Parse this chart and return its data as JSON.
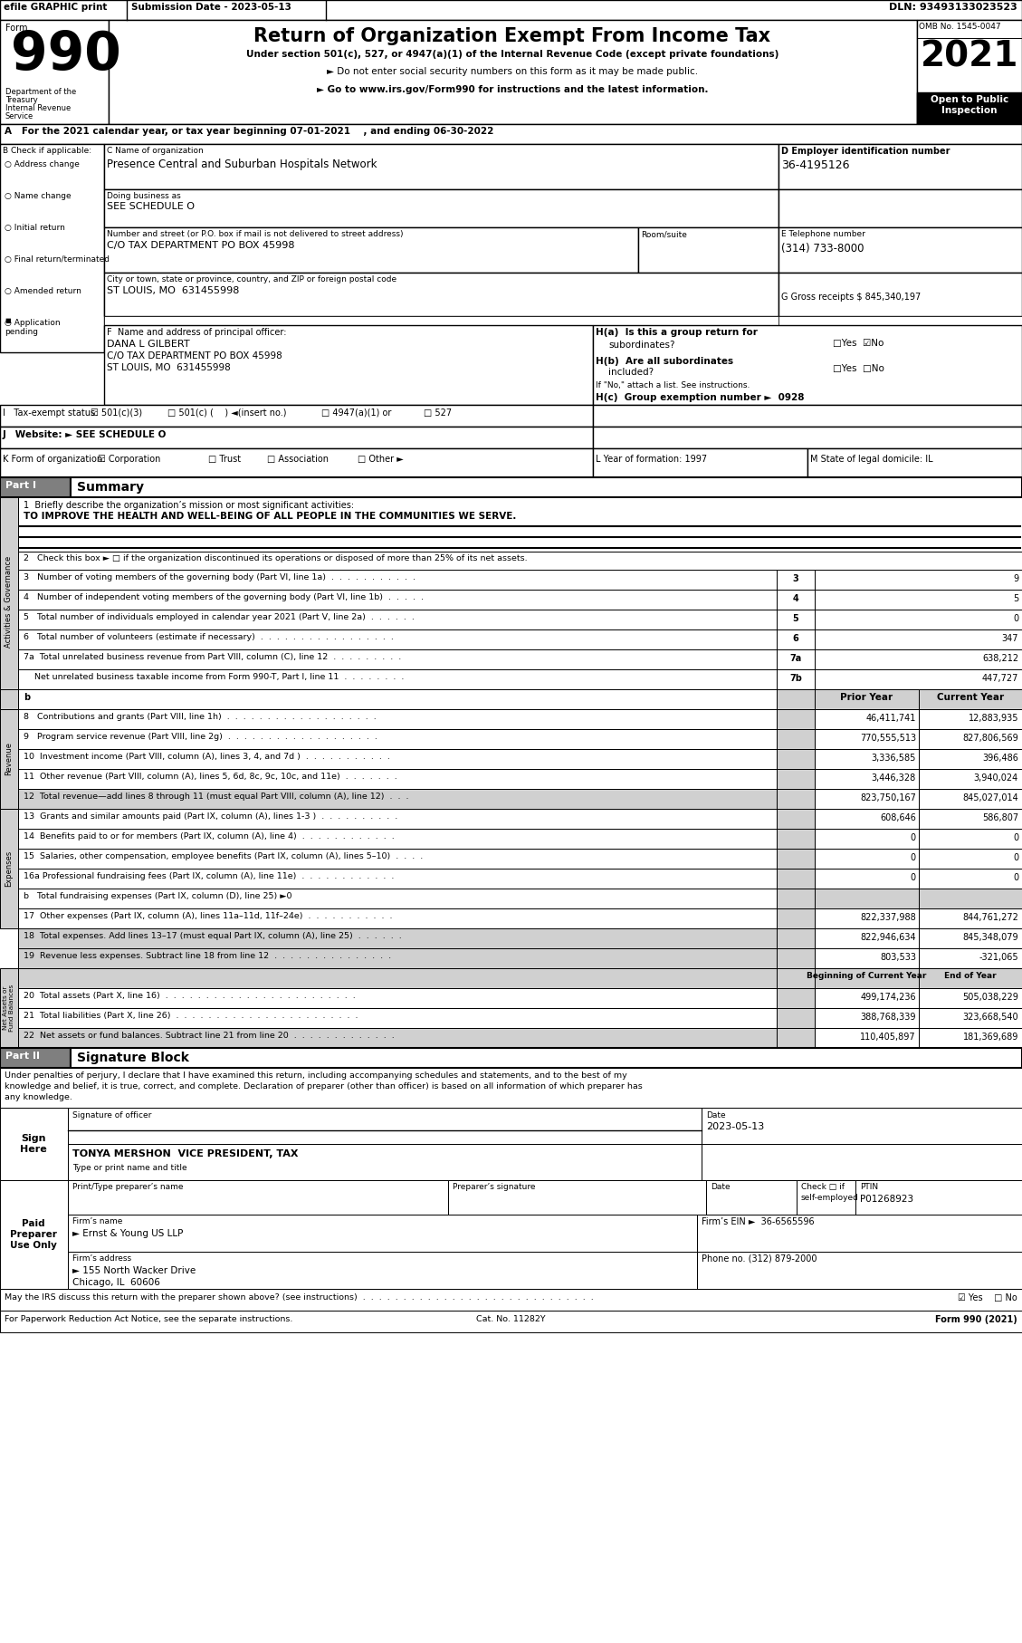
{
  "title": "Return of Organization Exempt From Income Tax",
  "form_number": "990",
  "year": "2021",
  "omb": "OMB No. 1545-0047",
  "efile_header": "efile GRAPHIC print",
  "submission_date": "Submission Date - 2023-05-13",
  "dln": "DLN: 93493133023523",
  "subtitle1": "Under section 501(c), 527, or 4947(a)(1) of the Internal Revenue Code (except private foundations)",
  "bullet1": "► Do not enter social security numbers on this form as it may be made public.",
  "bullet2": "► Go to www.irs.gov/Form990 for instructions and the latest information.",
  "tax_year_line": "A   For the 2021 calendar year, or tax year beginning 07-01-2021    , and ending 06-30-2022",
  "b_label": "B Check if applicable:",
  "check_items": [
    "Address change",
    "Name change",
    "Initial return",
    "Final return/terminated",
    "Amended return",
    "Application\npending"
  ],
  "c_label": "C Name of organization",
  "org_name": "Presence Central and Suburban Hospitals Network",
  "dba_label": "Doing business as",
  "dba_value": "SEE SCHEDULE O",
  "street_label": "Number and street (or P.O. box if mail is not delivered to street address)",
  "street_value": "C/O TAX DEPARTMENT PO BOX 45998",
  "room_label": "Room/suite",
  "city_label": "City or town, state or province, country, and ZIP or foreign postal code",
  "city_value": "ST LOUIS, MO  631455998",
  "d_label": "D Employer identification number",
  "ein": "36-4195126",
  "e_label": "E Telephone number",
  "phone": "(314) 733-8000",
  "g_label": "G Gross receipts $ 845,340,197",
  "f_label": "F  Name and address of principal officer:",
  "officer_name": "DANA L GILBERT",
  "officer_addr1": "C/O TAX DEPARTMENT PO BOX 45998",
  "officer_addr2": "ST LOUIS, MO  631455998",
  "ha_label": "H(a)  Is this a group return for",
  "hb_label": "H(b)  Are all subordinates",
  "hb_label2": "included?",
  "hb_note": "If \"No,\" attach a list. See instructions.",
  "hc_label": "H(c)  Group exemption number ►  0928",
  "i_label": "I   Tax-exempt status:",
  "j_label": "J   Website: ► SEE SCHEDULE O",
  "k_label": "K Form of organization:",
  "l_label": "L Year of formation: 1997",
  "m_label": "M State of legal domicile: IL",
  "line1_label": "1  Briefly describe the organization’s mission or most significant activities:",
  "line1_value": "TO IMPROVE THE HEALTH AND WELL-BEING OF ALL PEOPLE IN THE COMMUNITIES WE SERVE.",
  "line2_label": "2   Check this box ► □ if the organization discontinued its operations or disposed of more than 25% of its net assets.",
  "line3_label": "3   Number of voting members of the governing body (Part VI, line 1a)  .  .  .  .  .  .  .  .  .  .  .",
  "line3_val": "9",
  "line4_label": "4   Number of independent voting members of the governing body (Part VI, line 1b)  .  .  .  .  .",
  "line4_val": "5",
  "line5_label": "5   Total number of individuals employed in calendar year 2021 (Part V, line 2a)  .  .  .  .  .  .",
  "line5_val": "0",
  "line6_label": "6   Total number of volunteers (estimate if necessary)  .  .  .  .  .  .  .  .  .  .  .  .  .  .  .  .  .",
  "line6_val": "347",
  "line7a_label": "7a  Total unrelated business revenue from Part VIII, column (C), line 12  .  .  .  .  .  .  .  .  .",
  "line7a_val": "638,212",
  "line7b_label": "    Net unrelated business taxable income from Form 990-T, Part I, line 11  .  .  .  .  .  .  .  .",
  "line7b_val": "447,727",
  "rev_header_prior": "Prior Year",
  "rev_header_current": "Current Year",
  "line8_label": "8   Contributions and grants (Part VIII, line 1h)  .  .  .  .  .  .  .  .  .  .  .  .  .  .  .  .  .  .  .",
  "line8_prior": "46,411,741",
  "line8_current": "12,883,935",
  "line9_label": "9   Program service revenue (Part VIII, line 2g)  .  .  .  .  .  .  .  .  .  .  .  .  .  .  .  .  .  .  .",
  "line9_prior": "770,555,513",
  "line9_current": "827,806,569",
  "line10_label": "10  Investment income (Part VIII, column (A), lines 3, 4, and 7d )  .  .  .  .  .  .  .  .  .  .  .",
  "line10_prior": "3,336,585",
  "line10_current": "396,486",
  "line11_label": "11  Other revenue (Part VIII, column (A), lines 5, 6d, 8c, 9c, 10c, and 11e)  .  .  .  .  .  .  .",
  "line11_prior": "3,446,328",
  "line11_current": "3,940,024",
  "line12_label": "12  Total revenue—add lines 8 through 11 (must equal Part VIII, column (A), line 12)  .  .  .",
  "line12_prior": "823,750,167",
  "line12_current": "845,027,014",
  "line13_label": "13  Grants and similar amounts paid (Part IX, column (A), lines 1-3 )  .  .  .  .  .  .  .  .  .  .",
  "line13_prior": "608,646",
  "line13_current": "586,807",
  "line14_label": "14  Benefits paid to or for members (Part IX, column (A), line 4)  .  .  .  .  .  .  .  .  .  .  .  .",
  "line14_prior": "0",
  "line14_current": "0",
  "line15_label": "15  Salaries, other compensation, employee benefits (Part IX, column (A), lines 5–10)  .  .  .  .",
  "line15_prior": "0",
  "line15_current": "0",
  "line16a_label": "16a Professional fundraising fees (Part IX, column (A), line 11e)  .  .  .  .  .  .  .  .  .  .  .  .",
  "line16a_prior": "0",
  "line16a_current": "0",
  "line16b_label": "b   Total fundraising expenses (Part IX, column (D), line 25) ►0",
  "line17_label": "17  Other expenses (Part IX, column (A), lines 11a–11d, 11f–24e)  .  .  .  .  .  .  .  .  .  .  .",
  "line17_prior": "822,337,988",
  "line17_current": "844,761,272",
  "line18_label": "18  Total expenses. Add lines 13–17 (must equal Part IX, column (A), line 25)  .  .  .  .  .  .",
  "line18_prior": "822,946,634",
  "line18_current": "845,348,079",
  "line19_label": "19  Revenue less expenses. Subtract line 18 from line 12  .  .  .  .  .  .  .  .  .  .  .  .  .  .  .",
  "line19_prior": "803,533",
  "line19_current": "-321,065",
  "beg_label": "Beginning of Current Year",
  "end_label": "End of Year",
  "line20_label": "20  Total assets (Part X, line 16)  .  .  .  .  .  .  .  .  .  .  .  .  .  .  .  .  .  .  .  .  .  .  .  .",
  "line20_beg": "499,174,236",
  "line20_end": "505,038,229",
  "line21_label": "21  Total liabilities (Part X, line 26)  .  .  .  .  .  .  .  .  .  .  .  .  .  .  .  .  .  .  .  .  .  .  .",
  "line21_beg": "388,768,339",
  "line21_end": "323,668,540",
  "line22_label": "22  Net assets or fund balances. Subtract line 21 from line 20  .  .  .  .  .  .  .  .  .  .  .  .  .",
  "line22_beg": "110,405,897",
  "line22_end": "181,369,689",
  "sig_text1": "Under penalties of perjury, I declare that I have examined this return, including accompanying schedules and statements, and to the best of my",
  "sig_text2": "knowledge and belief, it is true, correct, and complete. Declaration of preparer (other than officer) is based on all information of which preparer has",
  "sig_text3": "any knowledge.",
  "sig_label": "Signature of officer",
  "sig_date": "2023-05-13",
  "sig_name": "TONYA MERSHON  VICE PRESIDENT, TAX",
  "sig_type": "Type or print name and title",
  "preparer_name_label": "Print/Type preparer’s name",
  "preparer_sig_label": "Preparer’s signature",
  "date_label": "Date",
  "ptin_label": "PTIN",
  "ptin_value": "P01268923",
  "firm_name_label": "Firm’s name",
  "firm_name": "► Ernst & Young US LLP",
  "firm_ein_label": "Firm’s EIN ►",
  "firm_ein": "36-6565596",
  "firm_addr_label": "Firm’s address",
  "firm_addr": "► 155 North Wacker Drive",
  "firm_city": "Chicago, IL  60606",
  "firm_phone_label": "Phone no. (312) 879-2000",
  "discuss_label": "May the IRS discuss this return with the preparer shown above? (see instructions)  .  .  .  .  .  .  .  .  .  .  .  .  .  .  .  .  .  .  .  .  .  .  .  .  .  .  .  .  .",
  "paperwork_label": "For Paperwork Reduction Act Notice, see the separate instructions.",
  "cat_no": "Cat. No. 11282Y",
  "form_footer": "Form 990 (2021)"
}
